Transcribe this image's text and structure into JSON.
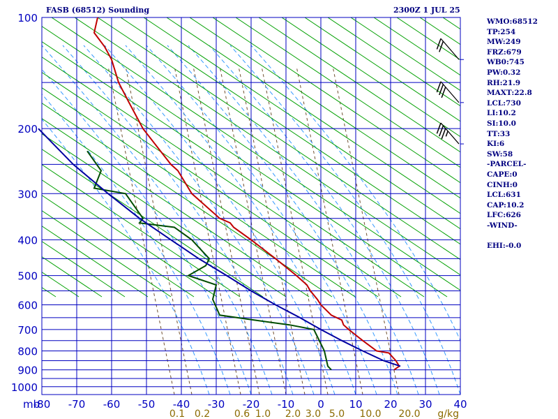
{
  "header": {
    "title": "FASB (68512) Sounding",
    "time": "2300Z  1 JUL 25"
  },
  "colors": {
    "background": "#ffffff",
    "grid": "#0000c0",
    "dry_adiabat": "#00a000",
    "moist_adiabat": "#3399ff",
    "mixing_ratio": "#705030",
    "temperature": "#c00000",
    "dewpoint": "#004d00",
    "parcel": "#0000a0",
    "label": "#0000c0",
    "mixing_label": "#8b6b00"
  },
  "stats": [
    "WMO:68512",
    "TP:254",
    "MW:249",
    "FRZ:679",
    "WB0:745",
    "PW:0.32",
    "RH:21.9",
    "MAXT:22.8",
    "LCL:730",
    "LI:10.2",
    "SI:10.0",
    "TT:33",
    "KI:6",
    "SW:58",
    "-PARCEL-",
    "CAPE:0",
    "CINH:0",
    "LCL:631",
    "CAP:10.2",
    "LFC:626",
    "-WIND-",
    "",
    "EHI:-0.0"
  ],
  "chart_data": {
    "type": "line",
    "title": "FASB (68512) Sounding",
    "x_unit_label": "mb",
    "pressure_levels": [
      100,
      150,
      200,
      250,
      300,
      350,
      400,
      450,
      500,
      550,
      600,
      650,
      700,
      750,
      800,
      850,
      900,
      950,
      1000
    ],
    "pressure_labels": [
      "100",
      "200",
      "300",
      "400",
      "500",
      "600",
      "700",
      "800",
      "900",
      "1000"
    ],
    "pressure_range": [
      100,
      1050
    ],
    "temperature_ticks": [
      -80,
      -70,
      -60,
      -50,
      -40,
      -30,
      -20,
      -10,
      0,
      10,
      20,
      30,
      40
    ],
    "temperature_labels": [
      "-80",
      "-70",
      "-60",
      "-50",
      "-40",
      "-30",
      "-20",
      "-10",
      "0",
      "10",
      "20",
      "30",
      "40"
    ],
    "temperature_range": [
      -80,
      40
    ],
    "mixing_ratio_values": [
      0.1,
      0.2,
      0.6,
      1.0,
      2.0,
      3.0,
      5.0,
      10.0,
      20.0
    ],
    "mixing_ratio_labels": [
      "0.1",
      "0.2",
      "0.6",
      "1.0",
      "2.0",
      "3.0",
      "5.0",
      "10.0",
      "20.0"
    ],
    "mixing_ratio_unit": "g/kg",
    "series": [
      {
        "key": "temperature",
        "points": [
          {
            "p": 900,
            "t": 21
          },
          {
            "p": 880,
            "t": 22.5
          },
          {
            "p": 850,
            "t": 21.5
          },
          {
            "p": 810,
            "t": 19.5
          },
          {
            "p": 800,
            "t": 16
          },
          {
            "p": 750,
            "t": 12
          },
          {
            "p": 700,
            "t": 8
          },
          {
            "p": 680,
            "t": 6.5
          },
          {
            "p": 660,
            "t": 6
          },
          {
            "p": 640,
            "t": 3
          },
          {
            "p": 600,
            "t": 0
          },
          {
            "p": 580,
            "t": -1
          },
          {
            "p": 550,
            "t": -3
          },
          {
            "p": 530,
            "t": -4
          },
          {
            "p": 500,
            "t": -7
          },
          {
            "p": 450,
            "t": -13
          },
          {
            "p": 400,
            "t": -20
          },
          {
            "p": 370,
            "t": -25
          },
          {
            "p": 360,
            "t": -26
          },
          {
            "p": 350,
            "t": -29
          },
          {
            "p": 300,
            "t": -37
          },
          {
            "p": 260,
            "t": -41
          },
          {
            "p": 250,
            "t": -43
          },
          {
            "p": 230,
            "t": -46
          },
          {
            "p": 200,
            "t": -51
          },
          {
            "p": 170,
            "t": -55
          },
          {
            "p": 150,
            "t": -58
          },
          {
            "p": 130,
            "t": -60
          },
          {
            "p": 120,
            "t": -62
          },
          {
            "p": 110,
            "t": -65
          },
          {
            "p": 100,
            "t": -64
          }
        ]
      },
      {
        "key": "dewpoint",
        "points": [
          {
            "p": 900,
            "t": 3
          },
          {
            "p": 880,
            "t": 2
          },
          {
            "p": 800,
            "t": 1
          },
          {
            "p": 700,
            "t": -2
          },
          {
            "p": 680,
            "t": -9
          },
          {
            "p": 660,
            "t": -19
          },
          {
            "p": 640,
            "t": -29
          },
          {
            "p": 580,
            "t": -31
          },
          {
            "p": 530,
            "t": -30
          },
          {
            "p": 500,
            "t": -38
          },
          {
            "p": 470,
            "t": -33
          },
          {
            "p": 450,
            "t": -32
          },
          {
            "p": 400,
            "t": -37
          },
          {
            "p": 370,
            "t": -42
          },
          {
            "p": 360,
            "t": -52
          },
          {
            "p": 350,
            "t": -51
          },
          {
            "p": 300,
            "t": -56
          },
          {
            "p": 290,
            "t": -65
          },
          {
            "p": 260,
            "t": -63
          },
          {
            "p": 230,
            "t": -67
          }
        ]
      },
      {
        "key": "parcel",
        "points": [
          {
            "p": 880,
            "t": 22.8
          },
          {
            "p": 850,
            "t": 18
          },
          {
            "p": 800,
            "t": 12
          },
          {
            "p": 750,
            "t": 6
          },
          {
            "p": 700,
            "t": 0
          },
          {
            "p": 650,
            "t": -6
          },
          {
            "p": 600,
            "t": -13
          },
          {
            "p": 550,
            "t": -20
          },
          {
            "p": 500,
            "t": -27
          },
          {
            "p": 450,
            "t": -35
          },
          {
            "p": 400,
            "t": -43
          },
          {
            "p": 350,
            "t": -52
          },
          {
            "p": 300,
            "t": -61
          },
          {
            "p": 250,
            "t": -71
          },
          {
            "p": 200,
            "t": -81
          }
        ]
      }
    ],
    "wind_barbs": [
      {
        "p": 130,
        "speed_kt": 20
      },
      {
        "p": 170,
        "speed_kt": 30
      },
      {
        "p": 220,
        "speed_kt": 35
      }
    ]
  }
}
